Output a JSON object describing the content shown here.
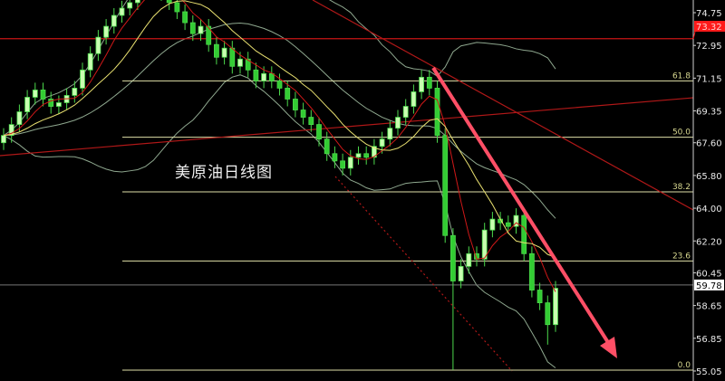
{
  "chart_data": {
    "type": "candlestick",
    "title": "美原油日线图",
    "ylim": [
      55.05,
      74.75
    ],
    "y_ticks": [
      "74.75",
      "72.95",
      "71.15",
      "69.35",
      "67.60",
      "65.80",
      "64.00",
      "62.20",
      "60.45",
      "58.65",
      "56.85",
      "55.05"
    ],
    "current_price": {
      "label": "59.78",
      "value": 59.78
    },
    "marked_price": {
      "label": "73.32",
      "value": 73.32,
      "color": "#ff1a1a"
    },
    "fibonacci": [
      {
        "label": "61.8",
        "value": 71.0
      },
      {
        "label": "50.0",
        "value": 67.9
      },
      {
        "label": "38.2",
        "value": 64.9
      },
      {
        "label": "23.6",
        "value": 61.1
      },
      {
        "label": "0.0",
        "value": 55.1
      }
    ],
    "open": [
      67.6,
      68.0,
      68.6,
      69.3,
      70.1,
      70.5,
      70.0,
      69.6,
      69.8,
      70.2,
      70.6,
      71.6,
      72.5,
      73.4,
      74.0,
      74.6,
      75.0,
      75.3,
      76.2,
      76.5,
      76.3,
      75.8,
      75.3,
      74.8,
      74.2,
      73.6,
      74.0,
      73.0,
      72.3,
      72.8,
      71.8,
      72.2,
      71.6,
      71.0,
      71.4,
      71.0,
      70.6,
      70.0,
      69.4,
      69.0,
      68.6,
      67.8,
      67.0,
      66.6,
      66.2,
      66.8,
      67.0,
      66.8,
      67.4,
      67.8,
      68.4,
      69.0,
      69.6,
      70.4,
      71.2,
      70.6,
      68.0,
      62.5,
      60.0,
      60.8,
      61.5,
      61.2,
      62.8,
      63.4,
      63.2,
      63.0,
      63.6,
      61.5,
      59.5,
      58.8,
      57.6
    ],
    "high": [
      68.4,
      69.0,
      69.7,
      70.5,
      70.9,
      70.9,
      70.4,
      70.2,
      70.6,
      71.0,
      72.0,
      72.9,
      73.8,
      74.4,
      75.0,
      75.4,
      75.7,
      76.6,
      76.9,
      76.9,
      76.7,
      76.2,
      75.7,
      75.2,
      74.6,
      74.4,
      74.4,
      73.4,
      73.2,
      73.2,
      72.6,
      72.6,
      72.0,
      71.8,
      71.8,
      71.4,
      71.0,
      70.4,
      69.8,
      69.4,
      69.0,
      68.2,
      67.4,
      67.0,
      67.2,
      67.4,
      67.4,
      67.8,
      68.2,
      68.8,
      69.4,
      70.0,
      70.8,
      71.6,
      71.6,
      71.0,
      68.4,
      62.9,
      61.2,
      61.9,
      61.9,
      63.2,
      63.8,
      63.8,
      63.6,
      64.0,
      64.0,
      61.9,
      59.9,
      59.2,
      60.0
    ],
    "low": [
      67.2,
      67.6,
      68.2,
      68.9,
      69.7,
      69.6,
      69.2,
      69.2,
      69.4,
      69.8,
      70.2,
      71.2,
      72.1,
      73.0,
      73.6,
      74.2,
      74.6,
      74.9,
      75.8,
      75.9,
      75.4,
      74.9,
      74.4,
      73.8,
      73.2,
      73.2,
      72.6,
      71.9,
      71.9,
      71.4,
      71.4,
      71.2,
      70.6,
      70.6,
      70.6,
      70.2,
      69.6,
      69.0,
      68.6,
      68.2,
      67.4,
      66.6,
      66.2,
      65.8,
      65.8,
      66.4,
      66.4,
      66.4,
      67.0,
      67.4,
      68.0,
      68.6,
      69.2,
      70.0,
      70.2,
      67.6,
      62.1,
      55.1,
      59.6,
      60.4,
      60.8,
      60.8,
      62.4,
      62.8,
      62.6,
      62.6,
      61.1,
      59.1,
      58.4,
      56.5,
      57.2
    ],
    "close": [
      68.0,
      68.6,
      69.3,
      70.1,
      70.5,
      70.0,
      69.6,
      69.8,
      70.2,
      70.6,
      71.6,
      72.5,
      73.4,
      74.0,
      74.6,
      75.0,
      75.3,
      76.2,
      76.5,
      76.3,
      75.8,
      75.3,
      74.8,
      74.2,
      73.6,
      74.0,
      73.0,
      72.3,
      72.8,
      71.8,
      72.2,
      71.6,
      71.0,
      71.4,
      71.0,
      70.6,
      70.0,
      69.4,
      69.0,
      68.6,
      67.8,
      67.0,
      66.6,
      66.2,
      66.8,
      67.0,
      66.8,
      67.4,
      67.8,
      68.4,
      69.0,
      69.6,
      70.4,
      71.2,
      70.6,
      68.0,
      62.5,
      60.0,
      60.8,
      61.5,
      61.2,
      62.8,
      63.4,
      63.2,
      63.0,
      63.6,
      61.5,
      59.5,
      58.8,
      57.6,
      59.6
    ],
    "colors": {
      "candle_up": "#c8ffb0",
      "candle_down": "#33cc33",
      "fib_line": "#e0e0a8",
      "trendline": "#b01818",
      "arrow": "#ff4f66"
    },
    "grid": false
  }
}
